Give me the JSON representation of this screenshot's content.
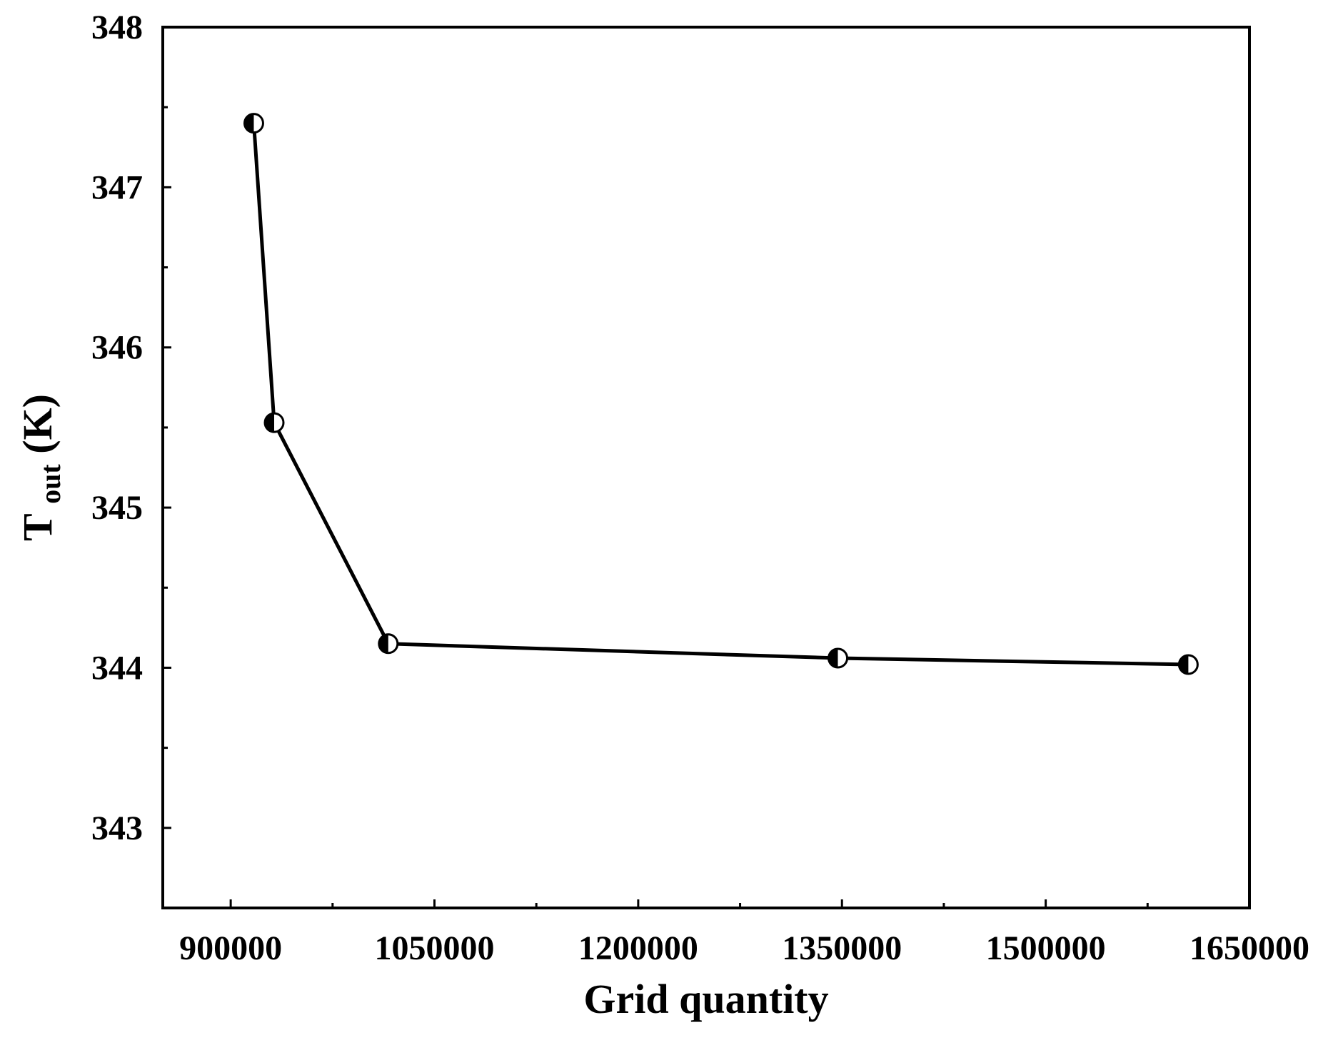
{
  "chart_data": {
    "type": "line",
    "title": "",
    "xlabel": "Grid quantity",
    "ylabel": {
      "main": "T",
      "subscript": "out",
      "unit": "(K)"
    },
    "xlim": [
      850000,
      1650000
    ],
    "ylim": [
      342.5,
      348
    ],
    "x_ticks": [
      900000,
      1050000,
      1200000,
      1350000,
      1500000,
      1650000
    ],
    "x_tick_labels": [
      "900000",
      "1050000",
      "1200000",
      "1350000",
      "1500000",
      "1650000"
    ],
    "y_ticks": [
      343,
      344,
      345,
      346,
      347,
      348
    ],
    "y_tick_labels": [
      "343",
      "344",
      "345",
      "346",
      "347",
      "348"
    ],
    "grid": false,
    "legend": "none",
    "marker": "half-filled circle",
    "line_color": "#000000",
    "series": [
      {
        "x": [
          917000,
          932000,
          1016000,
          1347000,
          1605000
        ],
        "y": [
          347.4,
          345.53,
          344.15,
          344.06,
          344.02
        ]
      }
    ]
  }
}
